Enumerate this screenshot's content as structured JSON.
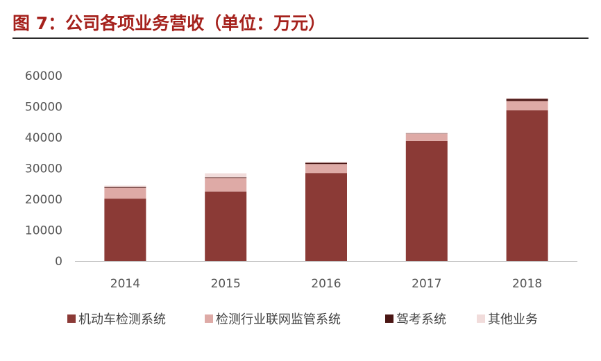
{
  "title": "图 7：公司各项业务营收（单位：万元）",
  "chart_data": {
    "type": "bar",
    "stacked": true,
    "title": "",
    "xlabel": "",
    "ylabel": "",
    "categories": [
      "2014",
      "2015",
      "2016",
      "2017",
      "2018"
    ],
    "ylim": [
      0,
      60000
    ],
    "yticks": [
      "0",
      "10000",
      "20000",
      "30000",
      "40000",
      "50000",
      "60000"
    ],
    "grid": false,
    "legend_position": "bottom",
    "series": [
      {
        "name": "机动车检测系统",
        "color": "#8b3a36",
        "values": [
          20200,
          22500,
          28500,
          38900,
          48800
        ]
      },
      {
        "name": "检测行业联网监管系统",
        "color": "#deaaa6",
        "values": [
          3500,
          4400,
          2900,
          2300,
          3000
        ]
      },
      {
        "name": "驾考系统",
        "color": "#4a1614",
        "values": [
          300,
          200,
          400,
          100,
          700
        ]
      },
      {
        "name": "其他业务",
        "color": "#f1dcdb",
        "values": [
          400,
          1300,
          300,
          300,
          300
        ]
      }
    ]
  }
}
